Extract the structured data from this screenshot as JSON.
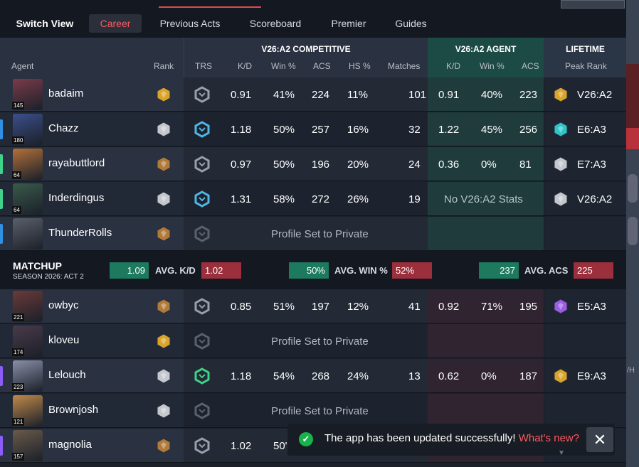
{
  "nav": {
    "switch_view": "Switch View",
    "tabs": [
      "Career",
      "Previous Acts",
      "Scoreboard",
      "Premier",
      "Guides"
    ]
  },
  "header": {
    "groups": {
      "competitive": "V26:A2 COMPETITIVE",
      "agent": "V26:A2 AGENT",
      "lifetime": "LIFETIME"
    },
    "cols": {
      "agent": "Agent",
      "rank": "Rank",
      "trs": "TRS",
      "kd": "K/D",
      "win": "Win %",
      "acs": "ACS",
      "hs": "HS %",
      "matches": "Matches",
      "akd": "K/D",
      "awin": "Win %",
      "aacs": "ACS",
      "peak": "Peak Rank"
    }
  },
  "team1": [
    {
      "name": "badaim",
      "level": "145",
      "bar": "",
      "kd": "0.91",
      "win": "41%",
      "acs": "224",
      "hs": "11%",
      "matches": "101",
      "akd": "0.91",
      "awin": "40%",
      "aacs": "223",
      "peak": "V26:A2",
      "rank_color": "#d9a42a",
      "trs_color": "#9aa0aa",
      "peak_color": "#d9a42a"
    },
    {
      "name": "Chazz",
      "level": "180",
      "bar": "#2f8fe0",
      "kd": "1.18",
      "win": "50%",
      "acs": "257",
      "hs": "16%",
      "matches": "32",
      "akd": "1.22",
      "awin": "45%",
      "aacs": "256",
      "peak": "E6:A3",
      "rank_color": "#c4c8ce",
      "trs_color": "#4fb8e8",
      "peak_color": "#2ec4c8"
    },
    {
      "name": "rayabuttlord",
      "level": "64",
      "bar": "#3fd38a",
      "kd": "0.97",
      "win": "50%",
      "acs": "196",
      "hs": "20%",
      "matches": "24",
      "akd": "0.36",
      "awin": "0%",
      "aacs": "81",
      "peak": "E7:A3",
      "rank_color": "#b07a3a",
      "trs_color": "#9aa0aa",
      "peak_color": "#c4c8ce"
    },
    {
      "name": "Inderdingus",
      "level": "64",
      "bar": "#3fd38a",
      "kd": "1.31",
      "win": "58%",
      "acs": "272",
      "hs": "26%",
      "matches": "19",
      "nostats": "No V26:A2 Stats",
      "peak": "V26:A2",
      "rank_color": "#c4c8ce",
      "trs_color": "#4fb8e8",
      "peak_color": "#c4c8ce"
    },
    {
      "name": "ThunderRolls",
      "level": "",
      "bar": "#2f8fe0",
      "private": "Profile Set to Private",
      "rank_color": "#b07a3a",
      "trs_color": "#5c626c"
    }
  ],
  "matchup": {
    "title": "MATCHUP",
    "season": "SEASON 2026: ACT 2",
    "kd_label": "AVG. K/D",
    "kd_left": "1.09",
    "kd_right": "1.02",
    "win_label": "AVG. WIN %",
    "win_left": "50%",
    "win_right": "52%",
    "acs_label": "AVG. ACS",
    "acs_left": "237",
    "acs_right": "225"
  },
  "team2": [
    {
      "name": "owbyc",
      "level": "221",
      "bar": "",
      "kd": "0.85",
      "win": "51%",
      "acs": "197",
      "hs": "12%",
      "matches": "41",
      "akd": "0.92",
      "awin": "71%",
      "aacs": "195",
      "peak": "E5:A3",
      "rank_color": "#b07a3a",
      "trs_color": "#9aa0aa",
      "peak_color": "#9b5de5"
    },
    {
      "name": "kloveu",
      "level": "174",
      "bar": "",
      "private": "Profile Set to Private",
      "rank_color": "#d9a42a",
      "trs_color": "#5c626c"
    },
    {
      "name": "Lelouch",
      "level": "223",
      "bar": "#8b5cf6",
      "kd": "1.18",
      "win": "54%",
      "acs": "268",
      "hs": "24%",
      "matches": "13",
      "akd": "0.62",
      "awin": "0%",
      "aacs": "187",
      "peak": "E9:A3",
      "rank_color": "#c4c8ce",
      "trs_color": "#3fd38a",
      "peak_color": "#d9a42a"
    },
    {
      "name": "Brownjosh",
      "level": "121",
      "bar": "",
      "private": "Profile Set to Private",
      "rank_color": "#c4c8ce",
      "trs_color": "#5c626c"
    },
    {
      "name": "magnolia",
      "level": "157",
      "bar": "#8b5cf6",
      "kd": "1.02",
      "win": "50'",
      "rank_color": "#b07a3a",
      "trs_color": "#9aa0aa"
    }
  ],
  "toast": {
    "message": "The app has been updated successfully!",
    "link": "What's new?",
    "close": "✕",
    "check": "✓",
    "arrow": "▼"
  }
}
